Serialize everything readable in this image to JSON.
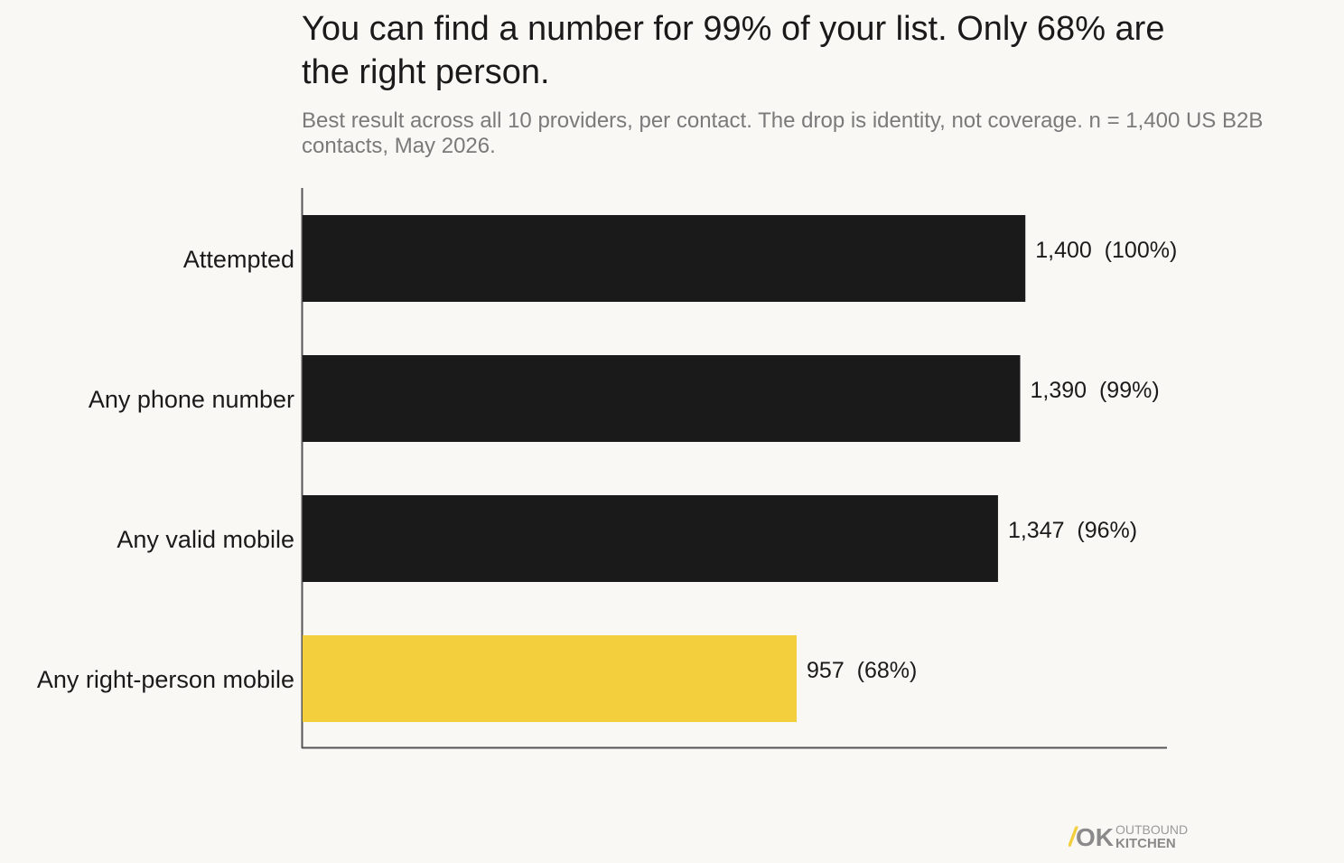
{
  "chart_data": {
    "type": "bar",
    "orientation": "horizontal",
    "title": "You can find a number for 99% of your list. Only 68% are the right person.",
    "subtitle": "Best result across all 10 providers, per contact. The drop is identity, not coverage. n = 1,400 US B2B contacts, May 2026.",
    "categories": [
      "Attempted",
      "Any phone number",
      "Any valid mobile",
      "Any right-person mobile"
    ],
    "values": [
      1400,
      1390,
      1347,
      957
    ],
    "data_labels": [
      "1,400  (100%)",
      "1,390  (99%)",
      "1,347  (96%)",
      "957  (68%)"
    ],
    "bar_colors": [
      "#1a1a1a",
      "#1a1a1a",
      "#1a1a1a",
      "#f3cf3e"
    ],
    "xlim": [
      0,
      1690
    ],
    "grid": false,
    "legend": "none"
  },
  "brand": {
    "mark": "OK",
    "line1": "OUTBOUND",
    "line2": "KITCHEN"
  }
}
